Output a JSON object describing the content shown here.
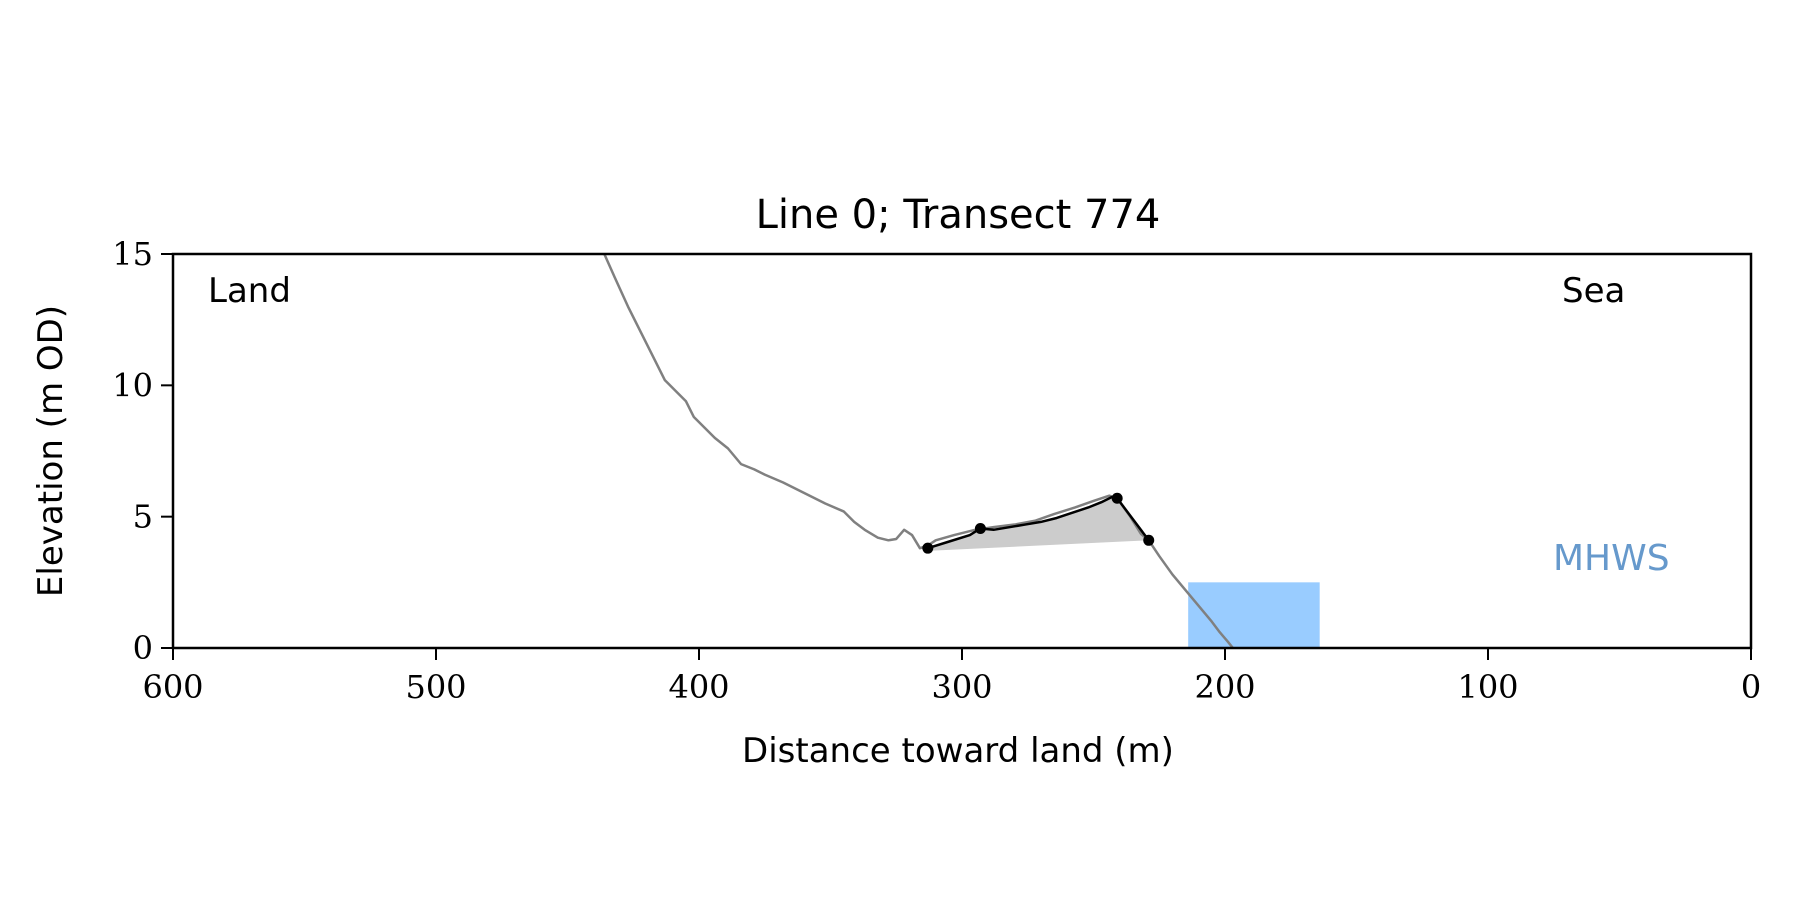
{
  "chart_data": {
    "type": "line",
    "title": "Line 0; Transect 774",
    "xlabel": "Distance toward land (m)",
    "ylabel": "Elevation (m OD)",
    "xlim": [
      600,
      0
    ],
    "ylim": [
      0,
      15
    ],
    "xticks": [
      600,
      500,
      400,
      300,
      200,
      100,
      0
    ],
    "yticks": [
      0,
      5,
      10,
      15
    ],
    "grid": false,
    "annotations": {
      "land": "Land",
      "sea": "Sea",
      "mhws": "MHWS"
    },
    "colors": {
      "profile": "#808080",
      "segment": "#000000",
      "fill": "#cccccc",
      "mhws_fill": "#99ccff",
      "mhws_text": "#6699cc"
    },
    "series": [
      {
        "role": "profile",
        "x": [
          436,
          432,
          427,
          422,
          417,
          413,
          409,
          405,
          402,
          398,
          394,
          389,
          384,
          379,
          375,
          368,
          360,
          352,
          345,
          341,
          337,
          332,
          328,
          325,
          322,
          319,
          316,
          313,
          310,
          303,
          295,
          288,
          280,
          272,
          265,
          257,
          250,
          244,
          241,
          236,
          232,
          229,
          225,
          220,
          215,
          210,
          205,
          202,
          199,
          197
        ],
        "y": [
          15.0,
          14.1,
          13.0,
          12.0,
          11.0,
          10.2,
          9.8,
          9.4,
          8.8,
          8.4,
          8.0,
          7.6,
          7.0,
          6.8,
          6.6,
          6.3,
          5.9,
          5.5,
          5.2,
          4.8,
          4.5,
          4.2,
          4.1,
          4.15,
          4.5,
          4.3,
          3.8,
          3.9,
          4.1,
          4.3,
          4.5,
          4.6,
          4.7,
          4.85,
          5.1,
          5.35,
          5.6,
          5.8,
          5.7,
          5.0,
          4.35,
          4.1,
          3.5,
          2.8,
          2.2,
          1.6,
          1.0,
          0.6,
          0.25,
          0.0
        ]
      },
      {
        "role": "cliff-segment",
        "x": [
          313,
          305,
          297,
          293,
          288,
          282,
          276,
          270,
          264,
          258,
          252,
          247,
          243,
          241,
          229
        ],
        "y": [
          3.8,
          4.05,
          4.3,
          4.55,
          4.5,
          4.6,
          4.7,
          4.8,
          4.95,
          5.15,
          5.35,
          5.55,
          5.75,
          5.7,
          4.1
        ]
      }
    ],
    "markers": {
      "x": [
        313,
        293,
        241,
        229
      ],
      "y": [
        3.8,
        4.55,
        5.7,
        4.1
      ]
    },
    "shaded_baseline": {
      "x": [
        313,
        229
      ],
      "y": [
        3.7,
        4.1
      ]
    },
    "mhws_band": {
      "x": [
        214,
        164
      ],
      "y": [
        0,
        2.5
      ]
    }
  }
}
